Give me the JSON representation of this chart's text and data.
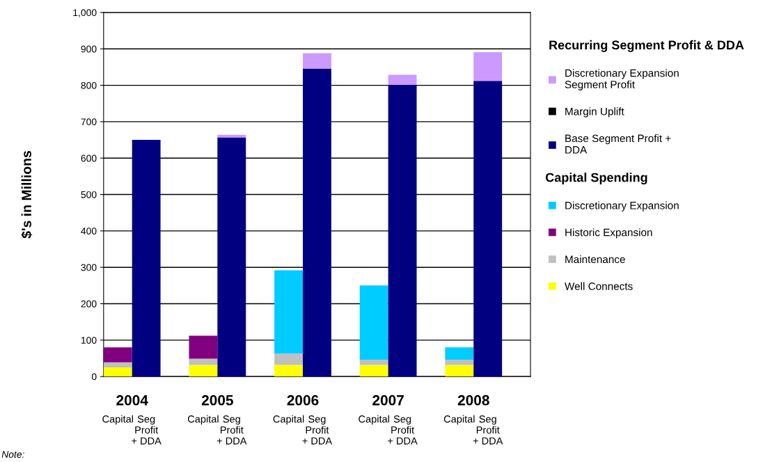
{
  "chart_data": {
    "type": "bar",
    "stacked": true,
    "ylabel": "$'s in Millions",
    "categories": [
      "Capital",
      "Seg\nProfit\n+ DDA",
      "Capital",
      "Seg\nProfit\n+ DDA",
      "Capital",
      "Seg\nProfit\n+ DDA",
      "Capital",
      "Seg\nProfit\n+ DDA",
      "Capital",
      "Seg\nProfit\n+ DDA"
    ],
    "series": [
      {
        "name": "Well Connects",
        "color": "#ffff00",
        "values": [
          25,
          null,
          32,
          null,
          32,
          null,
          32,
          null,
          32,
          null
        ]
      },
      {
        "name": "Maintenance",
        "color": "#c0c0c0",
        "values": [
          14,
          null,
          17,
          null,
          31,
          null,
          14,
          null,
          14,
          null
        ]
      },
      {
        "name": "Historic Expansion",
        "color": "#800080",
        "values": [
          41,
          null,
          63,
          null,
          null,
          null,
          null,
          null,
          null,
          null
        ]
      },
      {
        "name": "Discretionary Expansion",
        "color": "#00ccff",
        "values": [
          null,
          null,
          null,
          null,
          229,
          null,
          204,
          null,
          34,
          null
        ]
      },
      {
        "name": "Base Segment Profit +\nDDA",
        "color": "#000080",
        "values": [
          null,
          650,
          null,
          657,
          null,
          846,
          null,
          801,
          null,
          812
        ]
      },
      {
        "name": "Margin Uplift",
        "color": "#000000",
        "values": [
          null,
          0,
          null,
          0,
          null,
          0,
          null,
          0,
          null,
          0
        ]
      },
      {
        "name": "Discretionary Expansion\nSegment Profit",
        "color": "#cc99ff",
        "values": [
          null,
          0,
          null,
          7,
          null,
          42,
          null,
          28,
          null,
          79
        ]
      }
    ],
    "ylim": [
      0,
      1000
    ],
    "yticks": [
      0,
      100,
      200,
      300,
      400,
      500,
      600,
      700,
      800,
      {
        "value": 900,
        "label": "900"
      },
      {
        "value": 1000,
        "label": "1,000"
      }
    ],
    "grid": "y",
    "legend": "right",
    "legend_title": "Recurring Segment Profit & DDA",
    "annotations": [
      "2004",
      "2005",
      "2006",
      "2007",
      "2008",
      "Capital Spending",
      "Note:"
    ]
  }
}
